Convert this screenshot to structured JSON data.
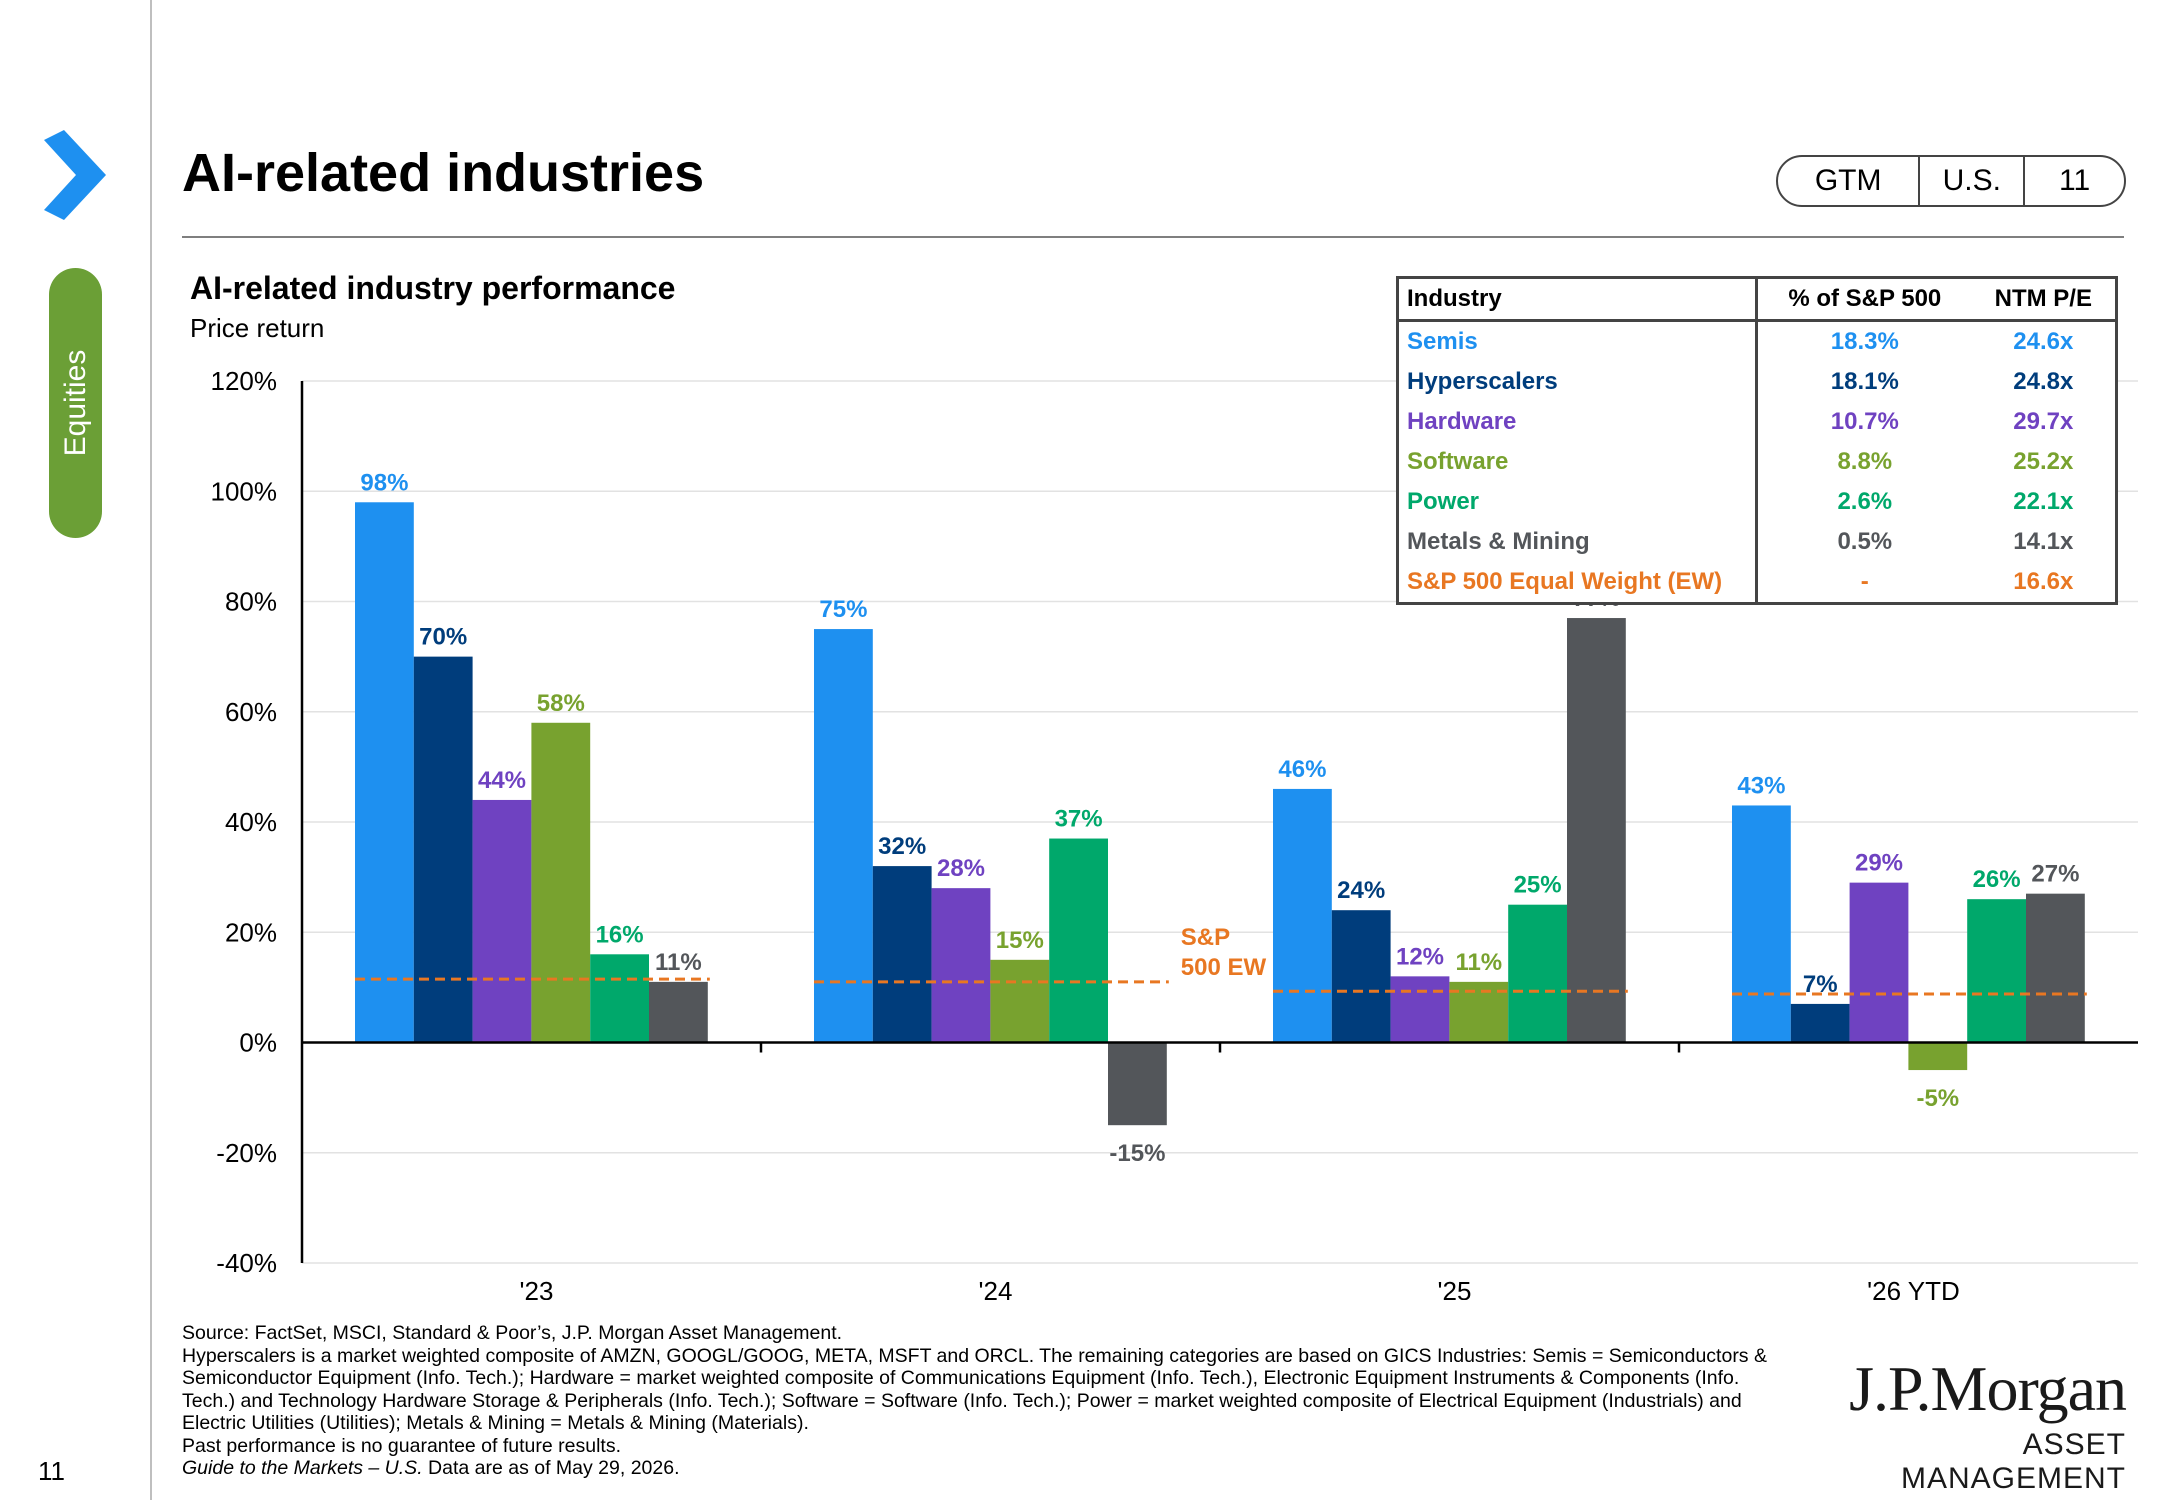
{
  "header": {
    "title": "AI-related industries",
    "badge": [
      "GTM",
      "U.S.",
      "11"
    ]
  },
  "sidebar": {
    "section": "Equities",
    "page_number": "11"
  },
  "chart_data": {
    "type": "bar",
    "title": "AI-related industry performance",
    "subtitle": "Price return",
    "categories": [
      "'23",
      "'24",
      "'25",
      "'26 YTD"
    ],
    "ylim": [
      -40,
      120
    ],
    "yticks": [
      -40,
      -20,
      0,
      20,
      40,
      60,
      80,
      100,
      120
    ],
    "ytick_labels": [
      "-40%",
      "-20%",
      "0%",
      "20%",
      "40%",
      "60%",
      "80%",
      "100%",
      "120%"
    ],
    "grid": true,
    "series": [
      {
        "name": "Semis",
        "color": "#1e90f0",
        "values": [
          98,
          75,
          46,
          43
        ],
        "labels": [
          "98%",
          "75%",
          "46%",
          "43%"
        ]
      },
      {
        "name": "Hyperscalers",
        "color": "#003d7c",
        "values": [
          70,
          32,
          24,
          7
        ],
        "labels": [
          "70%",
          "32%",
          "24%",
          "7%"
        ]
      },
      {
        "name": "Hardware",
        "color": "#6f42c1",
        "values": [
          44,
          28,
          12,
          29
        ],
        "labels": [
          "44%",
          "28%",
          "12%",
          "29%"
        ]
      },
      {
        "name": "Software",
        "color": "#78a22f",
        "values": [
          58,
          15,
          11,
          -5
        ],
        "labels": [
          "58%",
          "15%",
          "11%",
          "-5%"
        ]
      },
      {
        "name": "Power",
        "color": "#00a86b",
        "values": [
          16,
          37,
          25,
          26
        ],
        "labels": [
          "16%",
          "37%",
          "25%",
          "26%"
        ]
      },
      {
        "name": "Metals & Mining",
        "color": "#53565a",
        "values": [
          11,
          -15,
          77,
          27
        ],
        "labels": [
          "11%",
          "-15%",
          "77%",
          "27%"
        ]
      }
    ],
    "reference_line": {
      "name": "S&P 500 EW",
      "label_lines": [
        "S&P",
        "500 EW"
      ],
      "color": "#e87722",
      "values": [
        11.5,
        11,
        9.3,
        8.8
      ]
    }
  },
  "table": {
    "headers": [
      "Industry",
      "% of S&P 500",
      "NTM P/E"
    ],
    "rows": [
      {
        "industry": "Semis",
        "pct": "18.3%",
        "pe": "24.6x",
        "color": "#1e90f0"
      },
      {
        "industry": "Hyperscalers",
        "pct": "18.1%",
        "pe": "24.8x",
        "color": "#003d7c"
      },
      {
        "industry": "Hardware",
        "pct": "10.7%",
        "pe": "29.7x",
        "color": "#6f42c1"
      },
      {
        "industry": "Software",
        "pct": "8.8%",
        "pe": "25.2x",
        "color": "#78a22f"
      },
      {
        "industry": "Power",
        "pct": "2.6%",
        "pe": "22.1x",
        "color": "#00a86b"
      },
      {
        "industry": "Metals & Mining",
        "pct": "0.5%",
        "pe": "14.1x",
        "color": "#53565a"
      },
      {
        "industry": "S&P 500 Equal Weight (EW)",
        "pct": "-",
        "pe": "16.6x",
        "color": "#e87722"
      }
    ]
  },
  "footnote": {
    "lines": [
      "Source: FactSet, MSCI, Standard & Poor’s, J.P. Morgan Asset Management.",
      "Hyperscalers is a market weighted composite of AMZN, GOOGL/GOOG, META, MSFT and ORCL. The remaining categories are based on GICS Industries: Semis = Semiconductors & Semiconductor Equipment (Info. Tech.); Hardware = market weighted composite of Communications Equipment (Info. Tech.), Electronic Equipment Instruments & Components (Info. Tech.) and Technology Hardware Storage & Peripherals (Info. Tech.); Software = Software (Info. Tech.); Power = market weighted composite of Electrical Equipment (Industrials) and Electric Utilities (Utilities); Metals & Mining = Metals & Mining (Materials).",
      "Past performance is no guarantee of future results."
    ],
    "guide": "Guide to the Markets – U.S.",
    "date_note": " Data are as of May 29, 2026."
  },
  "logo": {
    "main": "J.P.Morgan",
    "sub": "ASSET MANAGEMENT"
  },
  "colors": {
    "accent_blue": "#1e90f0",
    "section_green": "#6b9f36",
    "reference_orange": "#e87722"
  }
}
